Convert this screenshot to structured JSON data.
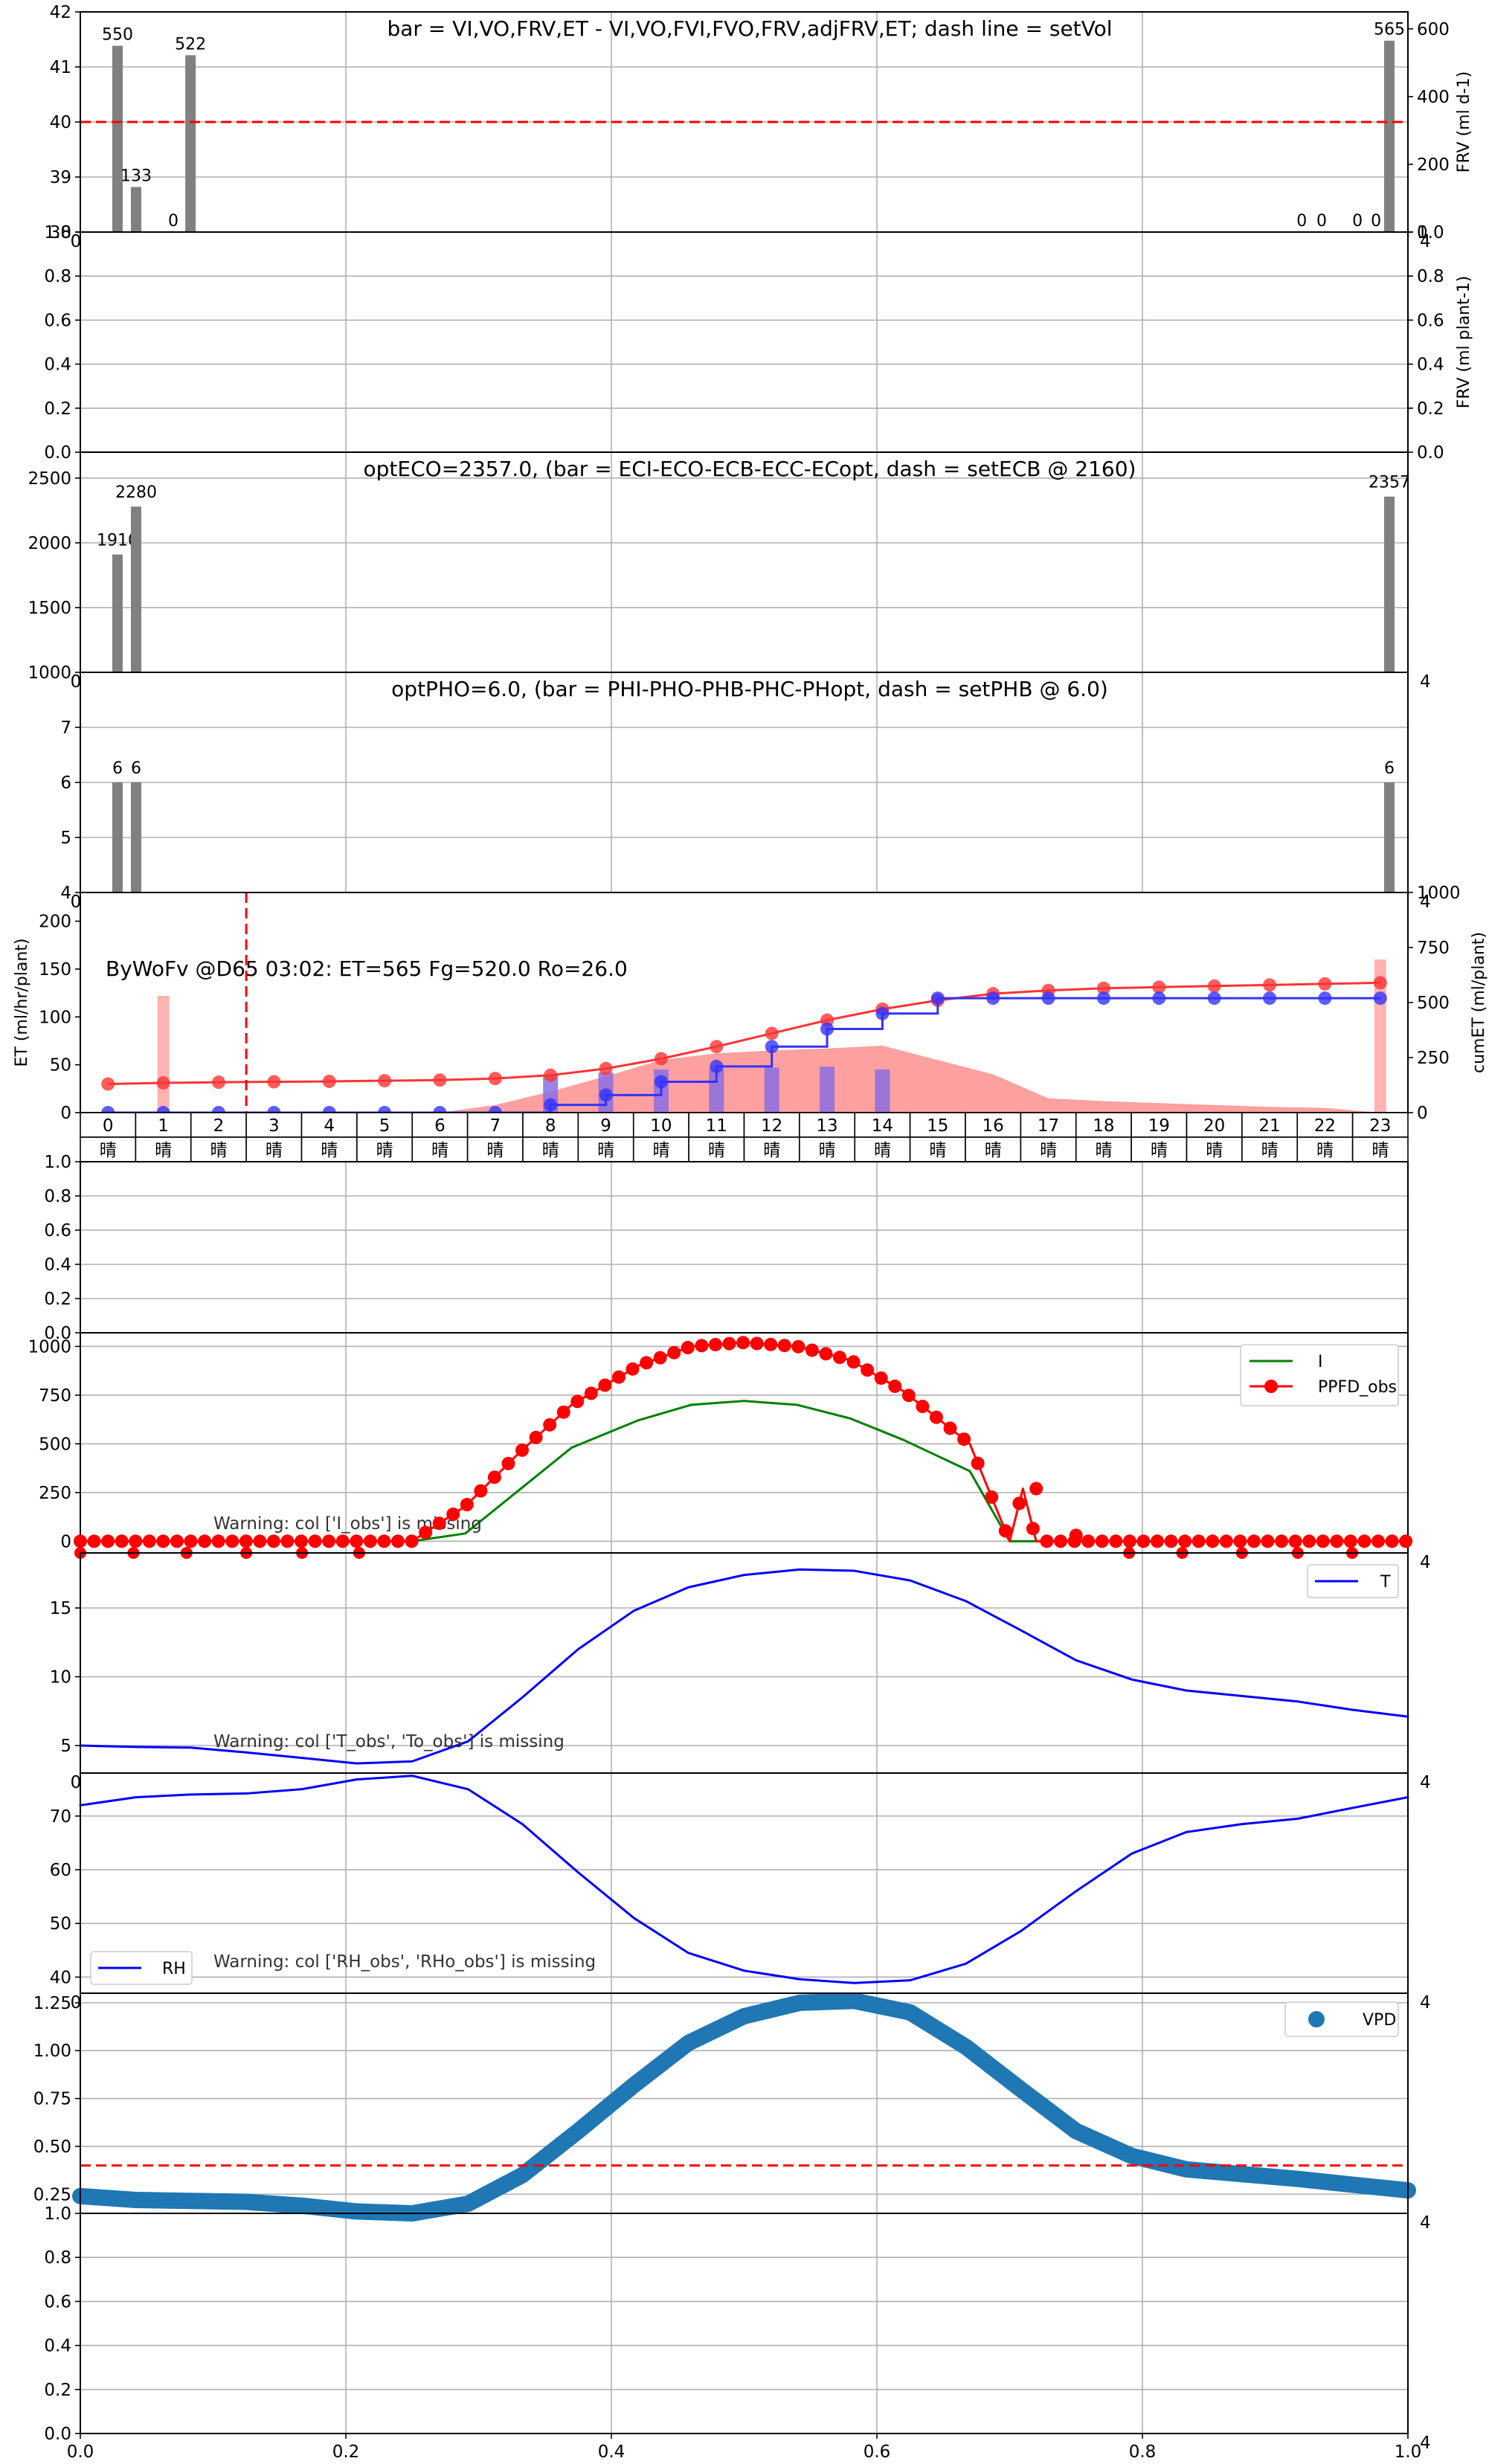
{
  "chart_data": [
    {
      "id": "frv",
      "type": "bar",
      "title": "bar = VI,VO,FRV,ET - VI,VO,FVI,FVO,FRV,adjFRV,ET; dash line = setVol",
      "left_yticks": [
        "38",
        "39",
        "40",
        "41",
        "42"
      ],
      "ylim_left": [
        38,
        42
      ],
      "right_ylabel": "FRV (ml d-1)",
      "right_yticks": [
        "0",
        "200",
        "400",
        "600"
      ],
      "ylim_right": [
        0,
        650
      ],
      "dash_value_left": 40,
      "x_corner_left": "0",
      "x_corner_right": "4",
      "bars": [
        {
          "x": 0.028,
          "value": 550,
          "label": "550"
        },
        {
          "x": 0.042,
          "value": 133,
          "label": "133"
        },
        {
          "x": 0.07,
          "value": 0,
          "label": "0"
        },
        {
          "x": 0.083,
          "value": 522,
          "label": "522"
        },
        {
          "x": 0.92,
          "value": 0,
          "label": "0"
        },
        {
          "x": 0.935,
          "value": 0,
          "label": "0"
        },
        {
          "x": 0.962,
          "value": 0,
          "label": "0"
        },
        {
          "x": 0.976,
          "value": 0,
          "label": "0"
        },
        {
          "x": 0.986,
          "value": 565,
          "label": "565"
        }
      ]
    },
    {
      "id": "frv_plant",
      "type": "line",
      "left_yticks": [
        "0.0",
        "0.2",
        "0.4",
        "0.6",
        "0.8",
        "1.0"
      ],
      "right_ylabel": "FRV (ml plant-1)",
      "right_yticks": [
        "0.0",
        "0.2",
        "0.4",
        "0.6",
        "0.8",
        "1.0"
      ],
      "ylim": [
        0,
        1
      ]
    },
    {
      "id": "ec",
      "type": "bar",
      "title": "optECO=2357.0, (bar = ECI-ECO-ECB-ECC-ECopt, dash = setECB @ 2160)",
      "left_yticks": [
        "1000",
        "1500",
        "2000",
        "2500"
      ],
      "ylim": [
        1000,
        2700
      ],
      "x_corner_left": "0",
      "x_corner_right": "4",
      "bars": [
        {
          "x": 0.028,
          "value": 1910,
          "label": "1910"
        },
        {
          "x": 0.042,
          "value": 2280,
          "label": "2280"
        },
        {
          "x": 0.986,
          "value": 2357,
          "label": "2357"
        }
      ]
    },
    {
      "id": "ph",
      "type": "bar",
      "title": "optPHO=6.0, (bar = PHI-PHO-PHB-PHC-PHopt, dash = setPHB @ 6.0)",
      "left_yticks": [
        "4",
        "5",
        "6",
        "7"
      ],
      "ylim": [
        4,
        8
      ],
      "x_corner_left": "0",
      "x_corner_right": "4",
      "bars": [
        {
          "x": 0.028,
          "value": 6,
          "label": "6"
        },
        {
          "x": 0.042,
          "value": 6,
          "label": "6"
        },
        {
          "x": 0.986,
          "value": 6,
          "label": "6"
        }
      ]
    },
    {
      "id": "et",
      "type": "line",
      "annotation": "ByWoFv @D65 03:02: ET=565 Fg=520.0 Ro=26.0",
      "ylabel": "ET (ml/hr/plant)",
      "left_yticks": [
        "0",
        "50",
        "100",
        "150",
        "200"
      ],
      "ylim": [
        0,
        230
      ],
      "right_ylabel": "cumET (ml/plant)",
      "right_yticks": [
        "0",
        "250",
        "500",
        "750",
        "1000"
      ],
      "ylim_right": [
        0,
        1000
      ],
      "hours": [
        "0",
        "1",
        "2",
        "3",
        "4",
        "5",
        "6",
        "7",
        "8",
        "9",
        "10",
        "11",
        "12",
        "13",
        "14",
        "15",
        "16",
        "17",
        "18",
        "19",
        "20",
        "21",
        "22",
        "23"
      ],
      "weather": [
        "晴",
        "晴",
        "晴",
        "晴",
        "晴",
        "晴",
        "晴",
        "晴",
        "晴",
        "晴",
        "晴",
        "晴",
        "晴",
        "晴",
        "晴",
        "晴",
        "晴",
        "晴",
        "晴",
        "晴",
        "晴",
        "晴",
        "晴",
        "晴"
      ],
      "vline_hour": 2.5,
      "area_values": [
        0,
        0,
        0,
        0,
        0,
        0,
        0,
        8,
        22,
        38,
        55,
        62,
        65,
        67,
        70,
        55,
        40,
        15,
        12,
        10,
        8,
        6,
        5,
        0
      ],
      "bar_values": [
        0,
        0,
        0,
        0,
        0,
        0,
        0,
        0,
        40,
        42,
        45,
        46,
        47,
        48,
        45,
        0,
        0,
        0,
        0,
        0,
        0,
        0,
        0,
        0
      ],
      "pink_bars": [
        {
          "hour": 1,
          "value": 122
        },
        {
          "hour": 23,
          "value": 160
        }
      ],
      "series": [
        {
          "name": "cumET (red)",
          "values": [
            130,
            135,
            138,
            140,
            142,
            145,
            148,
            155,
            170,
            200,
            245,
            300,
            360,
            420,
            470,
            510,
            540,
            555,
            565,
            570,
            575,
            580,
            585,
            590
          ]
        },
        {
          "name": "cumET (blue)",
          "values": [
            0,
            0,
            0,
            0,
            0,
            0,
            0,
            0,
            35,
            80,
            140,
            210,
            300,
            380,
            450,
            520,
            520,
            520,
            520,
            520,
            520,
            520,
            520,
            520
          ]
        }
      ]
    },
    {
      "id": "blank1",
      "type": "line",
      "left_yticks": [
        "0.0",
        "0.2",
        "0.4",
        "0.6",
        "0.8",
        "1.0"
      ],
      "ylim": [
        0,
        1
      ]
    },
    {
      "id": "ppfd",
      "type": "line",
      "left_yticks": [
        "0",
        "250",
        "500",
        "750",
        "1000"
      ],
      "ylim": [
        -60,
        1070
      ],
      "warning": "Warning: col ['I_obs'] is missing",
      "x_corner_right": "4",
      "series": [
        {
          "name": "I",
          "color": "#008000",
          "x": [
            0,
            0.25,
            0.29,
            0.33,
            0.37,
            0.42,
            0.46,
            0.5,
            0.54,
            0.58,
            0.62,
            0.67,
            0.7,
            1.0
          ],
          "y": [
            0,
            0,
            40,
            260,
            480,
            620,
            700,
            720,
            700,
            630,
            520,
            360,
            0,
            0
          ]
        },
        {
          "name": "PPFD_obs",
          "color": "#ff0000",
          "x": [
            0,
            0.25,
            0.29,
            0.33,
            0.37,
            0.42,
            0.46,
            0.5,
            0.54,
            0.58,
            0.62,
            0.67,
            0.7,
            0.71,
            0.72,
            1.0
          ],
          "y": [
            0,
            0,
            180,
            450,
            700,
            900,
            1000,
            1020,
            1000,
            930,
            770,
            500,
            0,
            270,
            0,
            0
          ]
        }
      ],
      "outliers_x": [
        0,
        0.04,
        0.08,
        0.125,
        0.167,
        0.21,
        0.79,
        0.83,
        0.875,
        0.917,
        0.958
      ],
      "outlier_y": -60
    },
    {
      "id": "temp",
      "type": "line",
      "left_yticks": [
        "5",
        "10",
        "15"
      ],
      "ylim": [
        3,
        19
      ],
      "warning": "Warning: col ['T_obs', 'To_obs'] is missing",
      "x_corner_left": "0",
      "x_corner_right": "4",
      "series": [
        {
          "name": "T",
          "color": "#0000ff",
          "x": [
            0,
            0.042,
            0.083,
            0.125,
            0.167,
            0.208,
            0.25,
            0.292,
            0.333,
            0.375,
            0.417,
            0.458,
            0.5,
            0.542,
            0.583,
            0.625,
            0.667,
            0.708,
            0.75,
            0.792,
            0.833,
            0.875,
            0.917,
            0.958,
            1.0
          ],
          "y": [
            5.0,
            4.9,
            4.85,
            4.5,
            4.1,
            3.7,
            3.85,
            5.3,
            8.5,
            12,
            14.8,
            16.5,
            17.4,
            17.8,
            17.7,
            17.0,
            15.5,
            13.4,
            11.2,
            9.8,
            9.0,
            8.6,
            8.2,
            7.6,
            7.1
          ]
        }
      ]
    },
    {
      "id": "rh",
      "type": "line",
      "left_yticks": [
        "40",
        "50",
        "60",
        "70"
      ],
      "ylim": [
        37,
        78
      ],
      "warning": "Warning: col ['RH_obs', 'RHo_obs'] is missing",
      "x_corner_left": "0",
      "x_corner_right": "4",
      "series": [
        {
          "name": "RH",
          "color": "#0000ff",
          "x": [
            0,
            0.042,
            0.083,
            0.125,
            0.167,
            0.208,
            0.25,
            0.292,
            0.333,
            0.375,
            0.417,
            0.458,
            0.5,
            0.542,
            0.583,
            0.625,
            0.667,
            0.708,
            0.75,
            0.792,
            0.833,
            0.875,
            0.917,
            0.958,
            1.0
          ],
          "y": [
            72,
            73.5,
            74,
            74.2,
            75,
            76.8,
            77.5,
            75,
            68.5,
            59.5,
            51,
            44.5,
            41.2,
            39.6,
            38.9,
            39.4,
            42.5,
            48.5,
            56,
            63,
            67,
            68.5,
            69.5,
            71.5,
            73.5
          ]
        }
      ]
    },
    {
      "id": "vpd",
      "type": "line",
      "left_yticks": [
        "0.25",
        "0.50",
        "0.75",
        "1.00",
        "1.25"
      ],
      "ylim": [
        0.15,
        1.3
      ],
      "dash_value": 0.4,
      "x_corner_right": "4",
      "series": [
        {
          "name": "VPD",
          "color": "#1f77b4",
          "x": [
            0,
            0.042,
            0.083,
            0.125,
            0.167,
            0.208,
            0.25,
            0.292,
            0.333,
            0.375,
            0.417,
            0.458,
            0.5,
            0.542,
            0.583,
            0.625,
            0.667,
            0.708,
            0.75,
            0.792,
            0.833,
            0.875,
            0.917,
            0.958,
            1.0
          ],
          "y": [
            0.24,
            0.22,
            0.215,
            0.21,
            0.19,
            0.16,
            0.15,
            0.2,
            0.35,
            0.58,
            0.82,
            1.04,
            1.18,
            1.25,
            1.26,
            1.2,
            1.02,
            0.8,
            0.58,
            0.45,
            0.38,
            0.355,
            0.33,
            0.3,
            0.27
          ]
        }
      ]
    },
    {
      "id": "blank2",
      "type": "line",
      "left_yticks": [
        "0.0",
        "0.2",
        "0.4",
        "0.6",
        "0.8",
        "1.0"
      ],
      "ylim": [
        0,
        1
      ],
      "x_corner_right": "4",
      "xticks": [
        "0.0",
        "0.2",
        "0.4",
        "0.6",
        "0.8",
        "1.0"
      ]
    }
  ]
}
